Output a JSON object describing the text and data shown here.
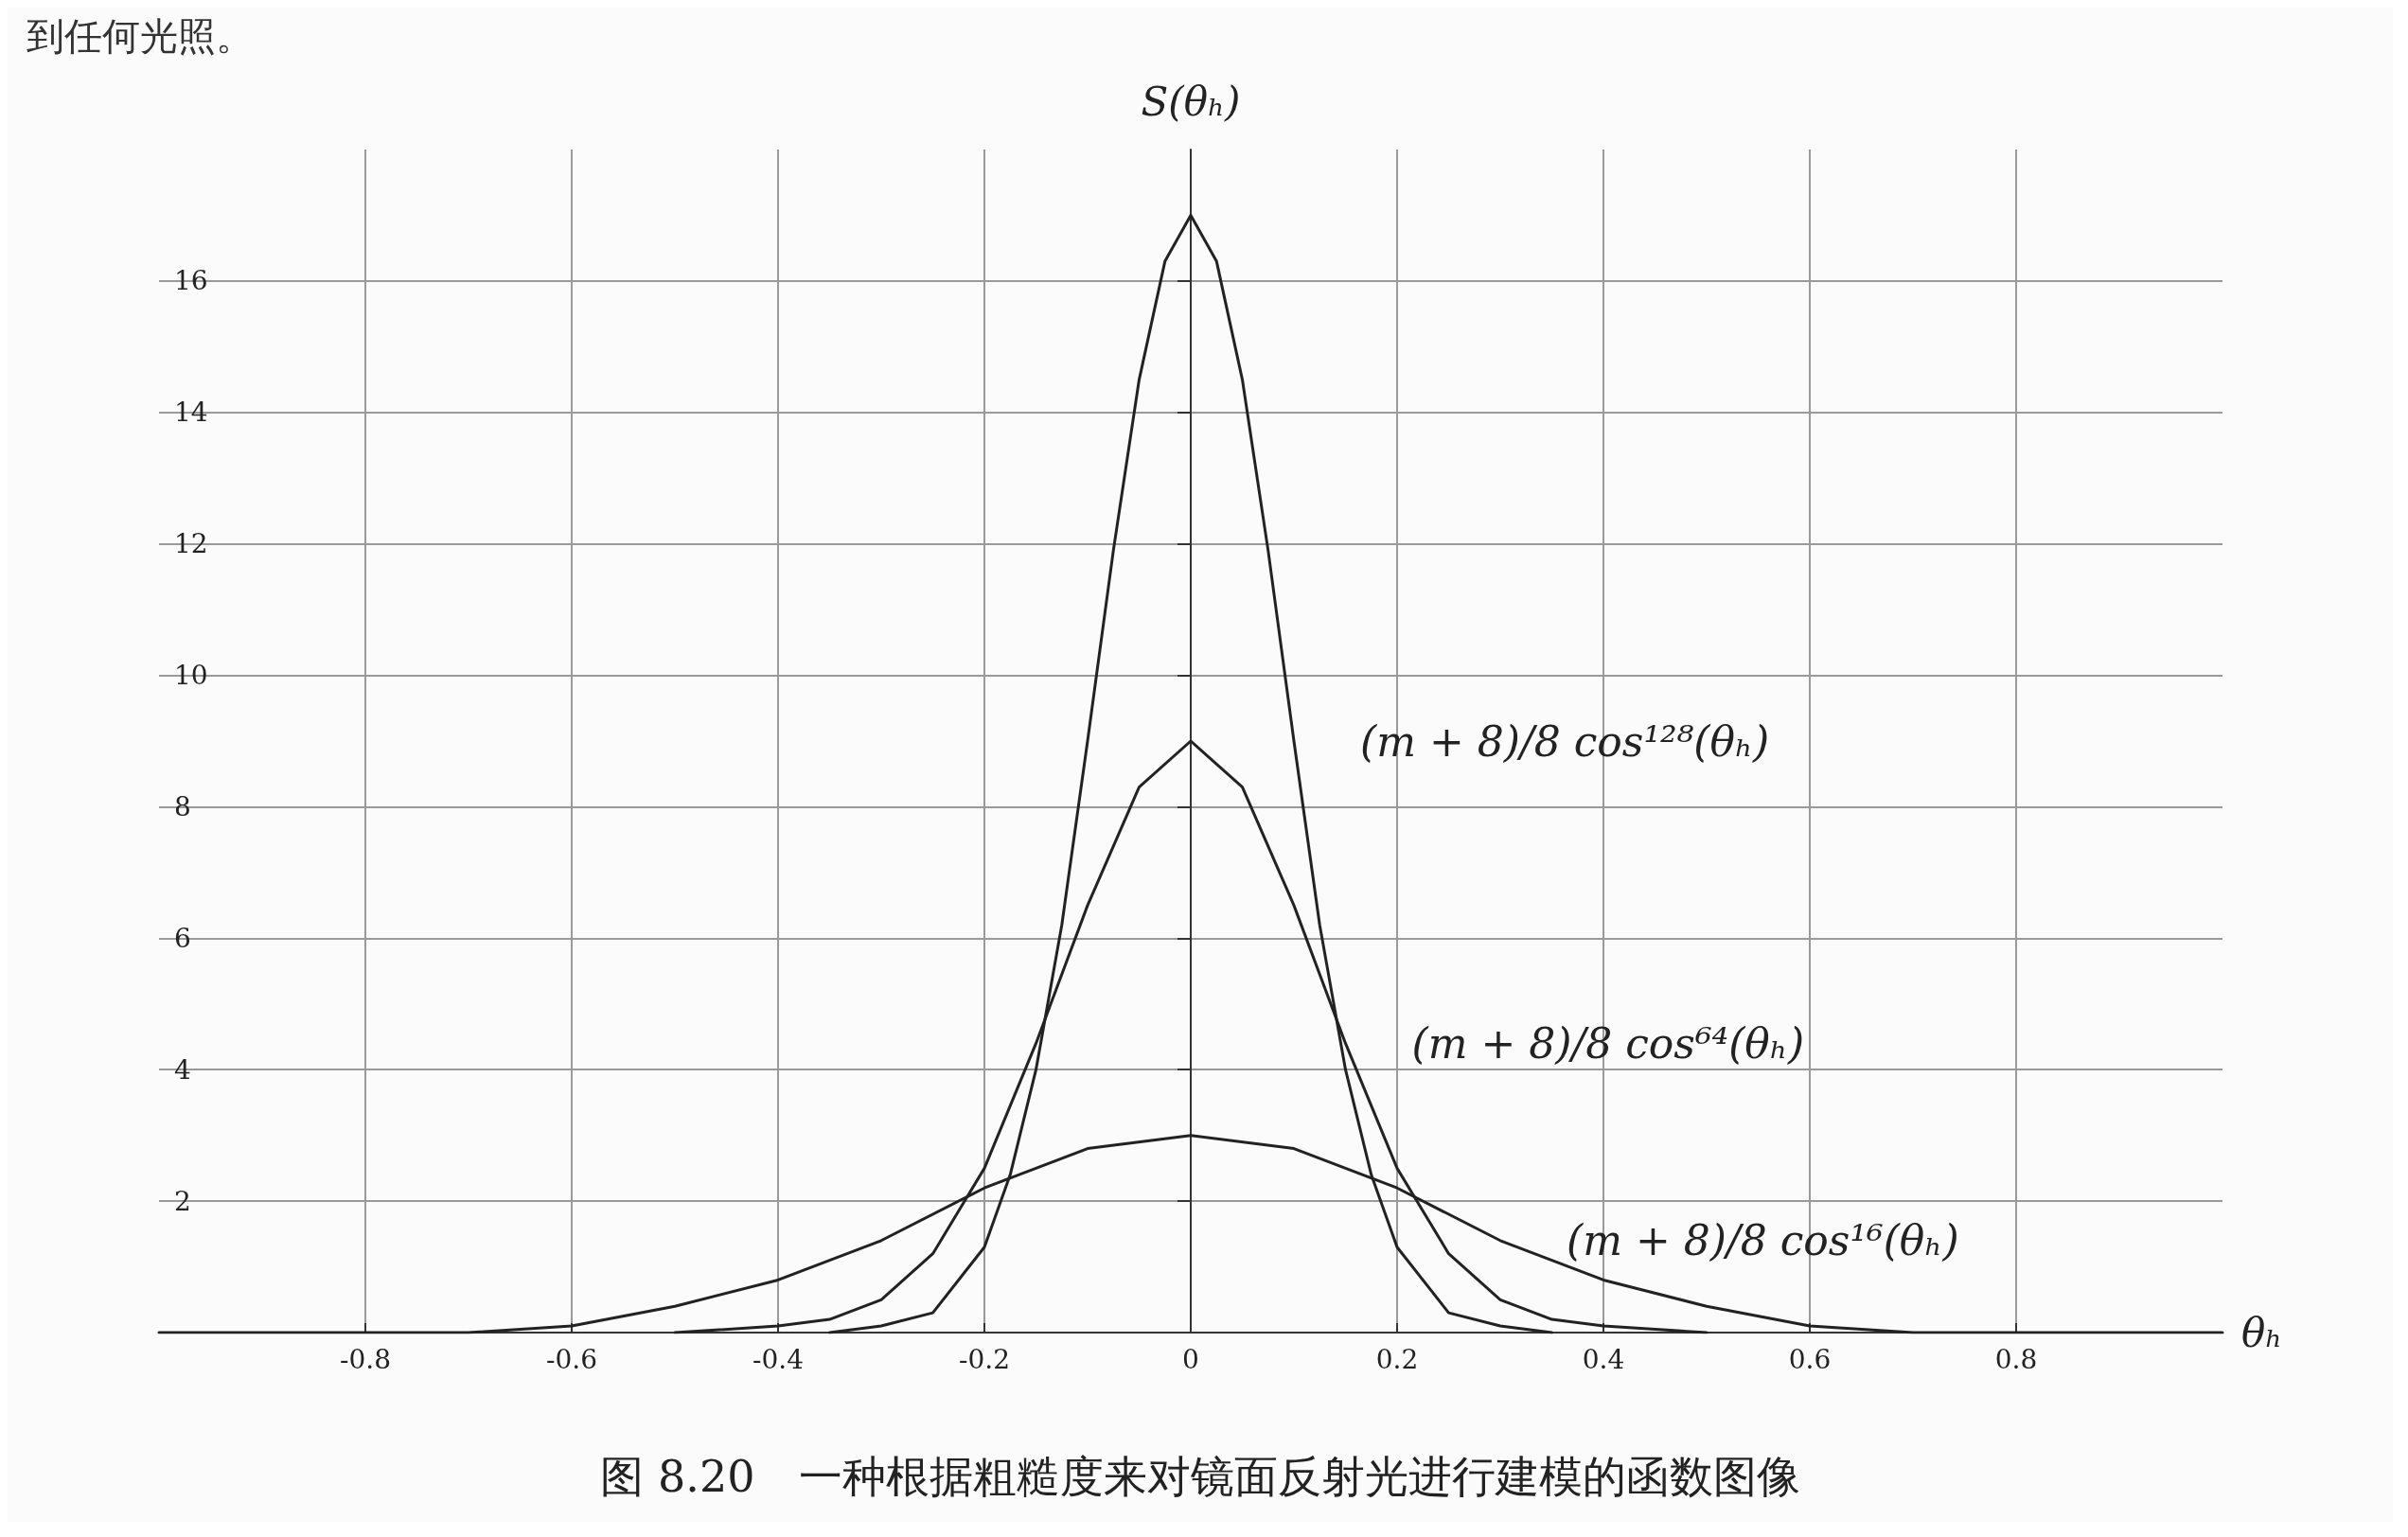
{
  "chart_data": {
    "type": "line",
    "title": "图 8.20　一种根据粗糙度来对镜面反射光进行建模的函数图像",
    "xlabel": "θₕ",
    "ylabel": "S(θₕ)",
    "series": [
      {
        "name": "(m + 8)/8 cos¹⁶(θₕ)",
        "color": "#222222",
        "x": [
          -1,
          -0.9,
          -0.8,
          -0.7,
          -0.6,
          -0.5,
          -0.4,
          -0.3,
          -0.2,
          -0.1,
          0,
          0.1,
          0.2,
          0.3,
          0.4,
          0.5,
          0.6,
          0.7,
          0.8,
          0.9,
          1
        ],
        "values": [
          0,
          0,
          0,
          0,
          0.1,
          0.4,
          0.8,
          1.4,
          2.2,
          2.8,
          3,
          2.8,
          2.2,
          1.4,
          0.8,
          0.4,
          0.1,
          0,
          0,
          0,
          0
        ]
      },
      {
        "name": "(m + 8)/8 cos⁶⁴(θₕ)",
        "color": "#222222",
        "x": [
          -0.5,
          -0.4,
          -0.35,
          -0.3,
          -0.25,
          -0.2,
          -0.15,
          -0.1,
          -0.05,
          0,
          0.05,
          0.1,
          0.15,
          0.2,
          0.25,
          0.3,
          0.35,
          0.4,
          0.5
        ],
        "values": [
          0,
          0.1,
          0.2,
          0.5,
          1.2,
          2.5,
          4.4,
          6.5,
          8.3,
          9,
          8.3,
          6.5,
          4.4,
          2.5,
          1.2,
          0.5,
          0.2,
          0.1,
          0
        ]
      },
      {
        "name": "(m + 8)/8 cos¹²⁸(θₕ)",
        "color": "#222222",
        "x": [
          -0.35,
          -0.3,
          -0.25,
          -0.2,
          -0.175,
          -0.15,
          -0.125,
          -0.1,
          -0.075,
          -0.05,
          -0.025,
          0,
          0.025,
          0.05,
          0.075,
          0.1,
          0.125,
          0.15,
          0.175,
          0.2,
          0.25,
          0.3,
          0.35
        ],
        "values": [
          0,
          0.1,
          0.3,
          1.3,
          2.4,
          4.0,
          6.2,
          9.0,
          11.9,
          14.5,
          16.3,
          17,
          16.3,
          14.5,
          11.9,
          9.0,
          6.2,
          4.0,
          2.4,
          1.3,
          0.3,
          0.1,
          0
        ]
      }
    ],
    "xlim": [
      -1,
      1
    ],
    "xticks": [
      -0.8,
      -0.6,
      -0.4,
      -0.2,
      0,
      0.2,
      0.4,
      0.6,
      0.8
    ],
    "ylim": [
      0,
      18
    ],
    "yticks": [
      2,
      4,
      6,
      8,
      10,
      12,
      14,
      16
    ],
    "grid": true,
    "marker": "none",
    "line_style": "solid",
    "annotations": [
      "到任何光照。"
    ]
  }
}
